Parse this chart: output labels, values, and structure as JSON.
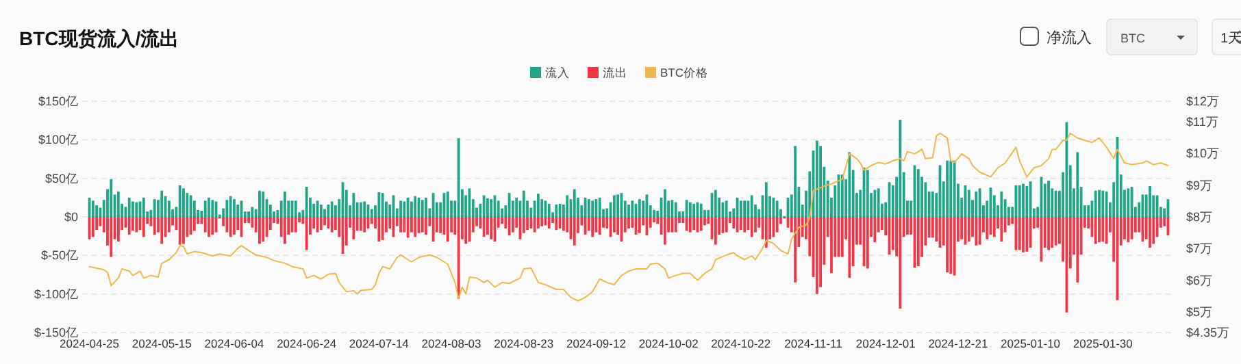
{
  "chart_data": {
    "type": "bar",
    "title": "BTC现货流入/流出",
    "annotations": [
      "净流入",
      "BTC",
      "1天"
    ],
    "legend": "top",
    "grid": "y",
    "x": [
      "2024-04-25",
      "2024-04-26",
      "2024-04-27",
      "2024-04-28",
      "2024-04-29",
      "2024-04-30",
      "2024-05-01",
      "2024-05-02",
      "2024-05-03",
      "2024-05-04",
      "2024-05-05",
      "2024-05-06",
      "2024-05-07",
      "2024-05-08",
      "2024-05-09",
      "2024-05-10",
      "2024-05-11",
      "2024-05-12",
      "2024-05-13",
      "2024-05-14",
      "2024-05-15",
      "2024-05-16",
      "2024-05-17",
      "2024-05-18",
      "2024-05-19",
      "2024-05-20",
      "2024-05-21",
      "2024-05-22",
      "2024-05-23",
      "2024-05-24",
      "2024-05-25",
      "2024-05-26",
      "2024-05-27",
      "2024-05-28",
      "2024-05-29",
      "2024-05-30",
      "2024-05-31",
      "2024-06-01",
      "2024-06-02",
      "2024-06-03",
      "2024-06-04",
      "2024-06-05",
      "2024-06-06",
      "2024-06-07",
      "2024-06-08",
      "2024-06-09",
      "2024-06-10",
      "2024-06-11",
      "2024-06-12",
      "2024-06-13",
      "2024-06-14",
      "2024-06-15",
      "2024-06-16",
      "2024-06-17",
      "2024-06-18",
      "2024-06-19",
      "2024-06-20",
      "2024-06-21",
      "2024-06-22",
      "2024-06-23",
      "2024-06-24",
      "2024-06-25",
      "2024-06-26",
      "2024-06-27",
      "2024-06-28",
      "2024-06-29",
      "2024-06-30",
      "2024-07-01",
      "2024-07-02",
      "2024-07-03",
      "2024-07-04",
      "2024-07-05",
      "2024-07-06",
      "2024-07-07",
      "2024-07-08",
      "2024-07-09",
      "2024-07-10",
      "2024-07-11",
      "2024-07-12",
      "2024-07-13",
      "2024-07-14",
      "2024-07-15",
      "2024-07-16",
      "2024-07-17",
      "2024-07-18",
      "2024-07-19",
      "2024-07-20",
      "2024-07-21",
      "2024-07-22",
      "2024-07-23",
      "2024-07-24",
      "2024-07-25",
      "2024-07-26",
      "2024-07-27",
      "2024-07-28",
      "2024-07-29",
      "2024-07-30",
      "2024-07-31",
      "2024-08-01",
      "2024-08-02",
      "2024-08-03",
      "2024-08-04",
      "2024-08-05",
      "2024-08-06",
      "2024-08-07",
      "2024-08-08",
      "2024-08-09",
      "2024-08-10",
      "2024-08-11",
      "2024-08-12",
      "2024-08-13",
      "2024-08-14",
      "2024-08-15",
      "2024-08-16",
      "2024-08-17",
      "2024-08-18",
      "2024-08-19",
      "2024-08-20",
      "2024-08-21",
      "2024-08-22",
      "2024-08-23",
      "2024-08-24",
      "2024-08-25",
      "2024-08-26",
      "2024-08-27",
      "2024-08-28",
      "2024-08-29",
      "2024-08-30",
      "2024-08-31",
      "2024-09-01",
      "2024-09-02",
      "2024-09-03",
      "2024-09-04",
      "2024-09-05",
      "2024-09-06",
      "2024-09-07",
      "2024-09-08",
      "2024-09-09",
      "2024-09-10",
      "2024-09-11",
      "2024-09-12",
      "2024-09-13",
      "2024-09-14",
      "2024-09-15",
      "2024-09-16",
      "2024-09-17",
      "2024-09-18",
      "2024-09-19",
      "2024-09-20",
      "2024-09-21",
      "2024-09-22",
      "2024-09-23",
      "2024-09-24",
      "2024-09-25",
      "2024-09-26",
      "2024-09-27",
      "2024-09-28",
      "2024-09-29",
      "2024-09-30",
      "2024-10-01",
      "2024-10-02",
      "2024-10-03",
      "2024-10-04",
      "2024-10-05",
      "2024-10-06",
      "2024-10-07",
      "2024-10-08",
      "2024-10-09",
      "2024-10-10",
      "2024-10-11",
      "2024-10-12",
      "2024-10-13",
      "2024-10-14",
      "2024-10-15",
      "2024-10-16",
      "2024-10-17",
      "2024-10-18",
      "2024-10-19",
      "2024-10-20",
      "2024-10-21",
      "2024-10-22",
      "2024-10-23",
      "2024-10-24",
      "2024-10-25",
      "2024-10-26",
      "2024-10-27",
      "2024-10-28",
      "2024-10-29",
      "2024-10-30",
      "2024-10-31",
      "2024-11-01",
      "2024-11-02",
      "2024-11-03",
      "2024-11-04",
      "2024-11-05",
      "2024-11-06",
      "2024-11-07",
      "2024-11-08",
      "2024-11-09",
      "2024-11-10",
      "2024-11-11",
      "2024-11-12",
      "2024-11-13",
      "2024-11-14",
      "2024-11-15",
      "2024-11-16",
      "2024-11-17",
      "2024-11-18",
      "2024-11-19",
      "2024-11-20",
      "2024-11-21",
      "2024-11-22",
      "2024-11-23",
      "2024-11-24",
      "2024-11-25",
      "2024-11-26",
      "2024-11-27",
      "2024-11-28",
      "2024-11-29",
      "2024-11-30",
      "2024-12-01",
      "2024-12-02",
      "2024-12-03",
      "2024-12-04",
      "2024-12-05",
      "2024-12-06",
      "2024-12-07",
      "2024-12-08",
      "2024-12-09",
      "2024-12-10",
      "2024-12-11",
      "2024-12-12",
      "2024-12-13",
      "2024-12-14",
      "2024-12-15",
      "2024-12-16",
      "2024-12-17",
      "2024-12-18",
      "2024-12-19",
      "2024-12-20",
      "2024-12-21",
      "2024-12-22",
      "2024-12-23",
      "2024-12-24",
      "2024-12-25",
      "2024-12-26",
      "2024-12-27",
      "2024-12-28",
      "2024-12-29",
      "2024-12-30",
      "2024-12-31",
      "2025-01-01",
      "2025-01-02",
      "2025-01-03",
      "2025-01-04",
      "2025-01-05",
      "2025-01-06",
      "2025-01-07",
      "2025-01-08",
      "2025-01-09",
      "2025-01-10",
      "2025-01-11",
      "2025-01-12",
      "2025-01-13",
      "2025-01-14",
      "2025-01-15",
      "2025-01-16",
      "2025-01-17",
      "2025-01-18",
      "2025-01-19",
      "2025-01-20",
      "2025-01-21",
      "2025-01-22",
      "2025-01-23",
      "2025-01-24",
      "2025-01-25",
      "2025-01-26",
      "2025-01-27",
      "2025-01-28",
      "2025-01-29",
      "2025-01-30",
      "2025-01-31",
      "2025-02-01",
      "2025-02-02",
      "2025-02-03",
      "2025-02-04",
      "2025-02-05",
      "2025-02-06",
      "2025-02-07",
      "2025-02-08",
      "2025-02-09",
      "2025-02-10",
      "2025-02-11",
      "2025-02-12",
      "2025-02-13",
      "2025-02-14",
      "2025-02-15",
      "2025-02-16",
      "2025-02-17"
    ],
    "series": [
      {
        "name": "流入",
        "color": "#1fa58a",
        "values": [
          25,
          21,
          15,
          12,
          22,
          36,
          49,
          29,
          33,
          17,
          13,
          25,
          20,
          19,
          20,
          25,
          7,
          9,
          23,
          22,
          34,
          27,
          21,
          10,
          13,
          41,
          37,
          31,
          28,
          21,
          9,
          8,
          21,
          25,
          22,
          20,
          3,
          11,
          22,
          27,
          23,
          16,
          21,
          7,
          7,
          13,
          10,
          34,
          33,
          23,
          16,
          7,
          9,
          21,
          33,
          21,
          21,
          21,
          6,
          9,
          39,
          25,
          17,
          21,
          16,
          10,
          16,
          20,
          15,
          23,
          45,
          35,
          15,
          31,
          19,
          19,
          20,
          16,
          10,
          15,
          32,
          31,
          20,
          16,
          28,
          11,
          21,
          20,
          25,
          20,
          27,
          25,
          22,
          25,
          11,
          31,
          19,
          19,
          31,
          33,
          21,
          21,
          102,
          36,
          28,
          37,
          23,
          12,
          17,
          28,
          24,
          23,
          28,
          21,
          11,
          15,
          31,
          21,
          25,
          21,
          34,
          21,
          12,
          21,
          30,
          23,
          21,
          17,
          6,
          16,
          17,
          16,
          28,
          23,
          36,
          25,
          15,
          25,
          23,
          21,
          23,
          25,
          10,
          11,
          19,
          28,
          29,
          31,
          21,
          16,
          21,
          17,
          23,
          21,
          29,
          15,
          9,
          8,
          25,
          36,
          21,
          22,
          19,
          7,
          7,
          22,
          19,
          17,
          19,
          17,
          9,
          9,
          31,
          35,
          25,
          19,
          21,
          7,
          11,
          25,
          21,
          21,
          21,
          28,
          16,
          10,
          28,
          45,
          27,
          25,
          21,
          10,
          1,
          25,
          29,
          92,
          39,
          16,
          34,
          59,
          86,
          99,
          92,
          65,
          47,
          25,
          41,
          55,
          55,
          49,
          84,
          61,
          31,
          35,
          64,
          61,
          31,
          35,
          37,
          17,
          19,
          45,
          41,
          52,
          126,
          58,
          21,
          21,
          67,
          62,
          52,
          45,
          33,
          33,
          31,
          67,
          46,
          73,
          73,
          73,
          43,
          25,
          41,
          35,
          22,
          33,
          37,
          15,
          21,
          38,
          28,
          15,
          33,
          23,
          13,
          13,
          41,
          41,
          43,
          40,
          46,
          11,
          13,
          52,
          43,
          47,
          37,
          34,
          34,
          58,
          123,
          67,
          37,
          84,
          39,
          15,
          15,
          21,
          34,
          35,
          34,
          33,
          19,
          45,
          104,
          55,
          35,
          37,
          39,
          13,
          19,
          29,
          29,
          40,
          28,
          28,
          13,
          11,
          23
        ]
      },
      {
        "name": "流出",
        "color": "#f23645",
        "values": [
          -29,
          -26,
          -17,
          -12,
          -20,
          -37,
          -52,
          -29,
          -32,
          -17,
          -14,
          -23,
          -18,
          -20,
          -17,
          -26,
          -9,
          -12,
          -23,
          -20,
          -35,
          -26,
          -20,
          -11,
          -17,
          -36,
          -35,
          -26,
          -23,
          -18,
          -9,
          -9,
          -20,
          -26,
          -23,
          -20,
          -2,
          -12,
          -20,
          -26,
          -23,
          -17,
          -26,
          -8,
          -8,
          -14,
          -20,
          -35,
          -32,
          -26,
          -17,
          -8,
          -9,
          -26,
          -35,
          -23,
          -20,
          -20,
          -7,
          -9,
          -43,
          -23,
          -15,
          -20,
          -17,
          -11,
          -15,
          -20,
          -17,
          -26,
          -48,
          -37,
          -14,
          -29,
          -18,
          -18,
          -20,
          -15,
          -9,
          -15,
          -32,
          -30,
          -20,
          -15,
          -26,
          -12,
          -20,
          -20,
          -27,
          -20,
          -26,
          -21,
          -20,
          -23,
          -12,
          -32,
          -20,
          -21,
          -23,
          -32,
          -20,
          -23,
          -106,
          -29,
          -35,
          -32,
          -20,
          -12,
          -15,
          -26,
          -23,
          -29,
          -32,
          -14,
          -9,
          -15,
          -24,
          -20,
          -14,
          -29,
          -21,
          -17,
          -15,
          -20,
          -15,
          -12,
          -11,
          -15,
          -8,
          -17,
          -15,
          -18,
          -20,
          -29,
          -37,
          -21,
          -11,
          -23,
          -18,
          -26,
          -20,
          -23,
          -14,
          -15,
          -26,
          -20,
          -23,
          -32,
          -20,
          -15,
          -14,
          -23,
          -21,
          -11,
          -24,
          -14,
          -7,
          -9,
          -23,
          -36,
          -20,
          -20,
          -20,
          -8,
          -8,
          -18,
          -20,
          -17,
          -20,
          -18,
          -11,
          -9,
          -29,
          -36,
          -23,
          -21,
          -20,
          -8,
          -15,
          -20,
          -17,
          -20,
          -17,
          -26,
          -20,
          -14,
          -29,
          -40,
          -29,
          -26,
          -20,
          -9,
          -2,
          -14,
          -20,
          -85,
          -39,
          -26,
          -29,
          -51,
          -78,
          -100,
          -91,
          -62,
          -26,
          -73,
          -52,
          -52,
          -52,
          -29,
          -79,
          -64,
          -36,
          -36,
          -64,
          -67,
          -26,
          -33,
          -20,
          -17,
          -24,
          -49,
          -43,
          -51,
          -119,
          -26,
          -23,
          -23,
          -66,
          -64,
          -52,
          -37,
          -27,
          -27,
          -32,
          -40,
          -37,
          -72,
          -74,
          -76,
          -32,
          -29,
          -36,
          -32,
          -26,
          -37,
          -36,
          -20,
          -29,
          -23,
          -26,
          -15,
          -32,
          -20,
          -11,
          -9,
          -43,
          -43,
          -46,
          -45,
          -40,
          -15,
          -14,
          -58,
          -40,
          -43,
          -40,
          -37,
          -35,
          -58,
          -124,
          -67,
          -49,
          -85,
          -49,
          -14,
          -15,
          -26,
          -35,
          -33,
          -32,
          -35,
          -20,
          -58,
          -108,
          -37,
          -29,
          -33,
          -29,
          -20,
          -20,
          -32,
          -29,
          -40,
          -35,
          -26,
          -14,
          -12,
          -24
        ]
      },
      {
        "name": "BTC价格",
        "type": "line",
        "axis": "y2",
        "color": "#f0b84a",
        "x": [
          "2024-04-25",
          "2024-04-29",
          "2024-04-30",
          "2024-05-01",
          "2024-05-03",
          "2024-05-04",
          "2024-05-06",
          "2024-05-07",
          "2024-05-09",
          "2024-05-10",
          "2024-05-12",
          "2024-05-14",
          "2024-05-15",
          "2024-05-17",
          "2024-05-19",
          "2024-05-20",
          "2024-05-21",
          "2024-05-22",
          "2024-05-24",
          "2024-05-26",
          "2024-05-29",
          "2024-05-31",
          "2024-06-03",
          "2024-06-05",
          "2024-06-06",
          "2024-06-08",
          "2024-06-10",
          "2024-06-13",
          "2024-06-15",
          "2024-06-18",
          "2024-06-20",
          "2024-06-23",
          "2024-06-24",
          "2024-06-26",
          "2024-06-28",
          "2024-06-30",
          "2024-07-02",
          "2024-07-03",
          "2024-07-05",
          "2024-07-07",
          "2024-07-08",
          "2024-07-09",
          "2024-07-12",
          "2024-07-13",
          "2024-07-14",
          "2024-07-15",
          "2024-07-17",
          "2024-07-19",
          "2024-07-20",
          "2024-07-22",
          "2024-07-23",
          "2024-07-25",
          "2024-07-28",
          "2024-07-30",
          "2024-08-02",
          "2024-08-04",
          "2024-08-05",
          "2024-08-06",
          "2024-08-07",
          "2024-08-08",
          "2024-08-10",
          "2024-08-12",
          "2024-08-13",
          "2024-08-15",
          "2024-08-17",
          "2024-08-19",
          "2024-08-22",
          "2024-08-23",
          "2024-08-25",
          "2024-08-27",
          "2024-08-29",
          "2024-09-01",
          "2024-09-03",
          "2024-09-05",
          "2024-09-07",
          "2024-09-09",
          "2024-09-11",
          "2024-09-13",
          "2024-09-15",
          "2024-09-17",
          "2024-09-19",
          "2024-09-21",
          "2024-09-23",
          "2024-09-26",
          "2024-09-27",
          "2024-09-29",
          "2024-10-01",
          "2024-10-02",
          "2024-10-04",
          "2024-10-06",
          "2024-10-08",
          "2024-10-10",
          "2024-10-12",
          "2024-10-14",
          "2024-10-15",
          "2024-10-18",
          "2024-10-20",
          "2024-10-21",
          "2024-10-23",
          "2024-10-25",
          "2024-10-26",
          "2024-10-28",
          "2024-10-29",
          "2024-10-31",
          "2024-11-02",
          "2024-11-04",
          "2024-11-05",
          "2024-11-07",
          "2024-11-09",
          "2024-11-10",
          "2024-11-11",
          "2024-11-14",
          "2024-11-16",
          "2024-11-19",
          "2024-11-21",
          "2024-11-23",
          "2024-11-24",
          "2024-11-25",
          "2024-11-26",
          "2024-11-27",
          "2024-11-29",
          "2024-12-01",
          "2024-12-03",
          "2024-12-05",
          "2024-12-06",
          "2024-12-07",
          "2024-12-09",
          "2024-12-11",
          "2024-12-12",
          "2024-12-14",
          "2024-12-15",
          "2024-12-16",
          "2024-12-18",
          "2024-12-19",
          "2024-12-20",
          "2024-12-22",
          "2024-12-24",
          "2024-12-25",
          "2024-12-27",
          "2024-12-30",
          "2025-01-01",
          "2025-01-03",
          "2025-01-06",
          "2025-01-07",
          "2025-01-09",
          "2025-01-11",
          "2025-01-13",
          "2025-01-15",
          "2025-01-16",
          "2025-01-17",
          "2025-01-19",
          "2025-01-20",
          "2025-01-21",
          "2025-01-23",
          "2025-01-25",
          "2025-01-27",
          "2025-01-29",
          "2025-01-31",
          "2025-02-02",
          "2025-02-03",
          "2025-02-05",
          "2025-02-07",
          "2025-02-10",
          "2025-02-11",
          "2025-02-13",
          "2025-02-15",
          "2025-02-17"
        ],
        "values": [
          6.43,
          6.33,
          6.25,
          5.83,
          6.07,
          6.36,
          6.29,
          6.15,
          6.29,
          6.07,
          6.15,
          6.1,
          6.54,
          6.65,
          6.87,
          7.09,
          7.06,
          6.83,
          6.91,
          6.87,
          6.77,
          6.83,
          6.77,
          7.01,
          7.09,
          6.94,
          6.8,
          6.72,
          6.62,
          6.54,
          6.43,
          6.36,
          6.07,
          6.15,
          6.04,
          6.19,
          6.22,
          5.93,
          5.64,
          5.67,
          5.57,
          5.68,
          5.71,
          5.86,
          6.22,
          6.43,
          6.36,
          6.72,
          6.8,
          6.65,
          6.58,
          6.72,
          6.8,
          6.72,
          6.51,
          5.93,
          5.42,
          5.78,
          5.57,
          6.1,
          6.07,
          5.93,
          6,
          5.78,
          5.93,
          5.9,
          6.07,
          6.36,
          6.39,
          5.93,
          5.86,
          5.71,
          5.71,
          5.46,
          5.35,
          5.46,
          5.64,
          6.04,
          5.93,
          5.86,
          6.15,
          6.29,
          6.36,
          6.36,
          6.51,
          6.54,
          6.36,
          6.07,
          6.15,
          6.22,
          6.22,
          6,
          6.22,
          6.36,
          6.65,
          6.8,
          6.87,
          6.77,
          6.65,
          6.77,
          6.65,
          7.01,
          7.26,
          7.16,
          6.94,
          6.83,
          7.3,
          7.67,
          7.74,
          7.96,
          8.83,
          8.97,
          9.04,
          9.19,
          9.99,
          9.84,
          9.7,
          9.48,
          9.55,
          9.62,
          9.72,
          9.67,
          9.77,
          9.84,
          9.77,
          10.06,
          9.99,
          10.13,
          9.84,
          9.87,
          10.56,
          10.64,
          10.49,
          9.77,
          9.72,
          9.99,
          9.84,
          9.62,
          9.41,
          9.26,
          9.55,
          9.7,
          10.2,
          9.77,
          9.26,
          9.55,
          9.62,
          9.84,
          10.13,
          10.13,
          10.42,
          10.42,
          10.64,
          10.49,
          10.42,
          10.35,
          10.49,
          10.2,
          9.84,
          10.13,
          9.7,
          9.65,
          9.7,
          9.77,
          9.65,
          9.7,
          9.62
        ]
      }
    ],
    "xlim": [
      "2024-04-23",
      "2025-02-19"
    ],
    "xticks": [
      "2024-04-25",
      "2024-05-15",
      "2024-06-04",
      "2024-06-24",
      "2024-07-14",
      "2024-08-03",
      "2024-08-23",
      "2024-09-12",
      "2024-10-02",
      "2024-10-22",
      "2024-11-11",
      "2024-12-01",
      "2024-12-21",
      "2025-01-10",
      "2025-01-30"
    ],
    "ylim": [
      -150,
      150
    ],
    "yticks": [
      {
        "value": 150,
        "label": "$150亿"
      },
      {
        "value": 100,
        "label": "$100亿"
      },
      {
        "value": 50,
        "label": "$50亿"
      },
      {
        "value": 0,
        "label": "$0"
      },
      {
        "value": -50,
        "label": "$-50亿"
      },
      {
        "value": -100,
        "label": "$-100亿"
      },
      {
        "value": -150,
        "label": "$-150亿"
      }
    ],
    "y2lim": [
      4.35,
      11.65
    ],
    "y2ticks": [
      {
        "value": 11.65,
        "label": "$12万"
      },
      {
        "value": 11,
        "label": "$11万"
      },
      {
        "value": 10,
        "label": "$10万"
      },
      {
        "value": 9,
        "label": "$9万"
      },
      {
        "value": 8,
        "label": "$8万"
      },
      {
        "value": 7,
        "label": "$7万"
      },
      {
        "value": 6,
        "label": "$6万"
      },
      {
        "value": 5,
        "label": "$5万"
      },
      {
        "value": 4.35,
        "label": "$4.35万"
      }
    ]
  }
}
